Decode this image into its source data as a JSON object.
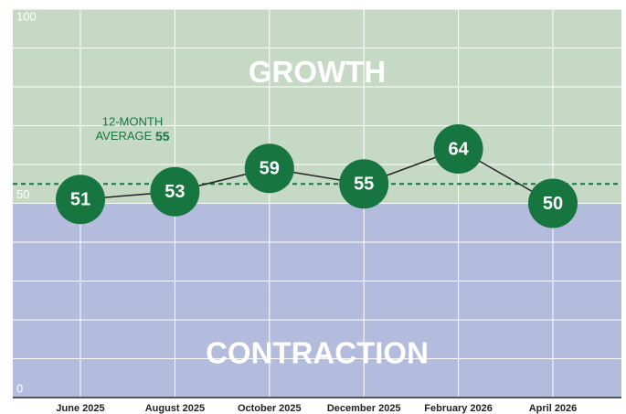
{
  "chart_data": {
    "type": "line",
    "categories": [
      "June 2025",
      "August 2025",
      "October 2025",
      "December 2025",
      "February 2026",
      "April 2026"
    ],
    "values": [
      51,
      53,
      59,
      55,
      64,
      50
    ],
    "color": "#17763f",
    "ylim": [
      0,
      100
    ],
    "yticks": [
      0,
      50,
      100
    ],
    "minor_yticks": [
      10,
      20,
      30,
      40,
      60,
      70,
      80,
      90
    ],
    "grid": true,
    "regions": [
      {
        "label": "GROWTH",
        "from": 50,
        "to": 100,
        "color": "#c6d9c5"
      },
      {
        "label": "CONTRACTION",
        "from": 0,
        "to": 50,
        "color": "#b3bcdd"
      }
    ],
    "average": {
      "line1": "12-MONTH",
      "line2": "AVERAGE",
      "value": 55,
      "color": "#17763f"
    }
  }
}
